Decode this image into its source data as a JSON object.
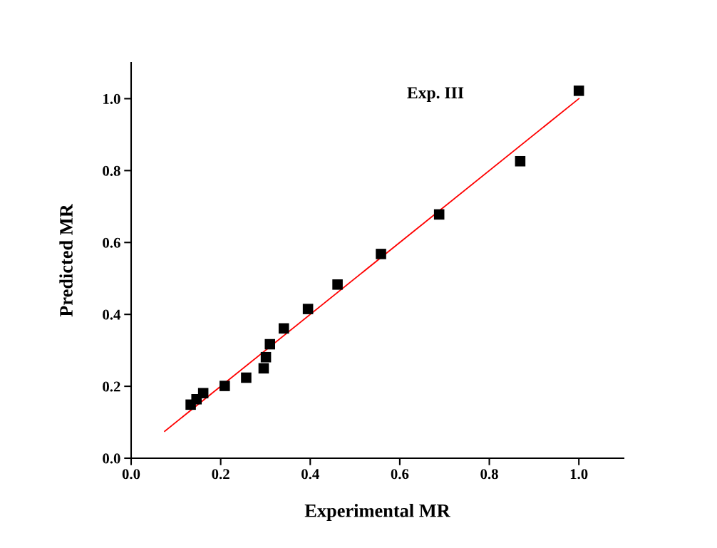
{
  "chart_data": {
    "type": "scatter",
    "xlabel": "Experimental MR",
    "ylabel": "Predicted MR",
    "annotations": [
      "Exp. III"
    ],
    "xlim": [
      0,
      1.1
    ],
    "ylim": [
      0,
      1.1
    ],
    "xticks": [
      "0.0",
      0.2,
      0.4,
      0.6,
      0.8,
      "1.0"
    ],
    "yticks": [
      "0.0",
      0.2,
      0.4,
      0.6,
      0.8,
      "1.0"
    ],
    "marker": "square",
    "grid": false,
    "legend": false,
    "series": [
      {
        "color": "#000000",
        "x": [
          0.133,
          0.146,
          0.161,
          0.209,
          0.257,
          0.296,
          0.301,
          0.31,
          0.341,
          0.395,
          0.461,
          0.558,
          0.688,
          0.869,
          1.0
        ],
        "values": [
          0.149,
          0.164,
          0.181,
          0.201,
          0.224,
          0.25,
          0.281,
          0.317,
          0.361,
          0.415,
          0.483,
          0.568,
          0.678,
          0.826,
          1.022
        ]
      },
      {
        "type": "line",
        "color": "#ff0000",
        "marker": "none",
        "x": [
          0.075,
          1.0
        ],
        "values": [
          0.075,
          1.0
        ]
      }
    ]
  }
}
